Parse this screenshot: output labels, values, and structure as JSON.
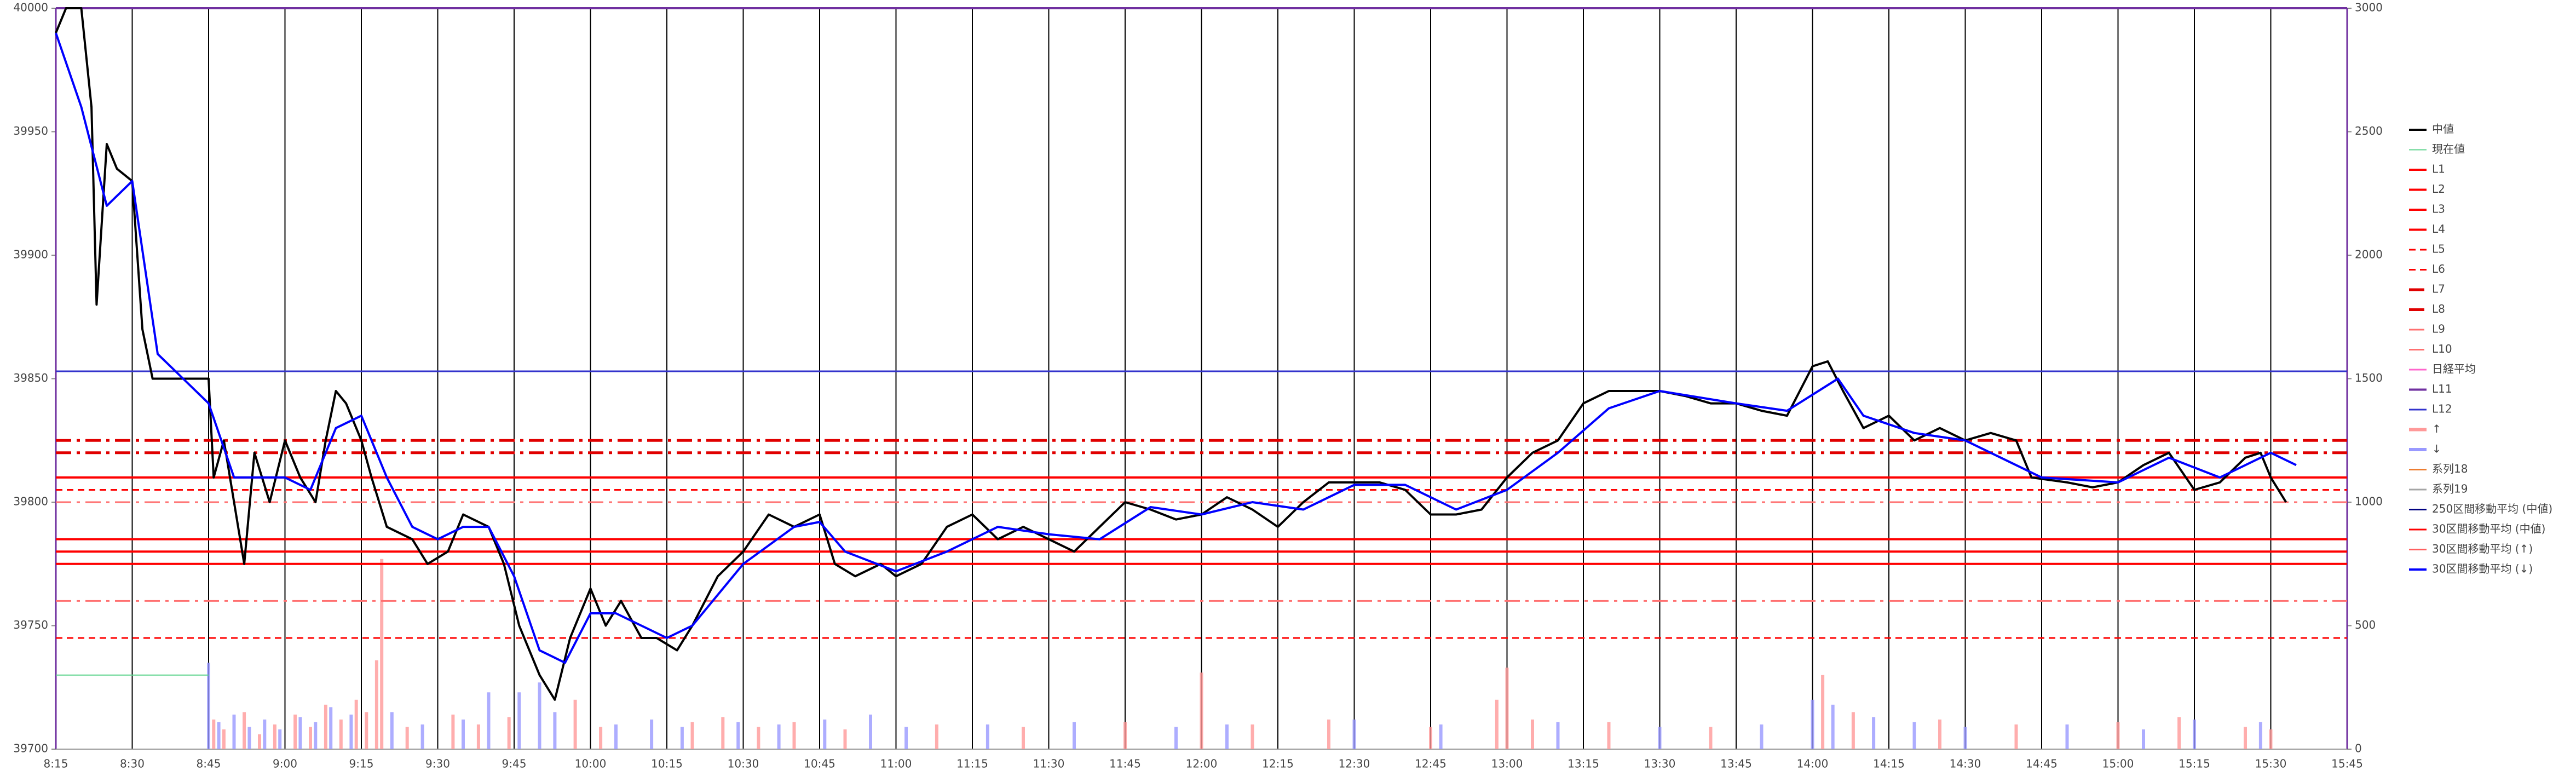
{
  "chart_data": {
    "type": "line",
    "xlim": [
      "8:15",
      "15:45"
    ],
    "xticks": [
      "8:15",
      "8:30",
      "8:45",
      "9:00",
      "9:15",
      "9:30",
      "9:45",
      "10:00",
      "10:15",
      "10:30",
      "10:45",
      "11:00",
      "11:15",
      "11:30",
      "11:45",
      "12:00",
      "12:15",
      "12:30",
      "12:45",
      "13:00",
      "13:15",
      "13:30",
      "13:45",
      "14:00",
      "14:15",
      "14:30",
      "14:45",
      "15:00",
      "15:15",
      "15:30",
      "15:45"
    ],
    "ylim": [
      39700,
      40000
    ],
    "yticks": [
      39700,
      39750,
      39800,
      39850,
      39900,
      39950,
      40000
    ],
    "y2lim": [
      0,
      3000
    ],
    "y2ticks": [
      0,
      500,
      1000,
      1500,
      2000,
      2500,
      3000
    ],
    "series": [
      {
        "name": "中値",
        "color": "#000000",
        "width": 4,
        "x": [
          "8:15",
          "8:17",
          "8:20",
          "8:22",
          "8:23",
          "8:25",
          "8:27",
          "8:30",
          "8:32",
          "8:34",
          "8:45",
          "8:46",
          "8:48",
          "8:50",
          "8:52",
          "8:54",
          "8:57",
          "9:00",
          "9:03",
          "9:06",
          "9:08",
          "9:10",
          "9:12",
          "9:15",
          "9:17",
          "9:20",
          "9:25",
          "9:28",
          "9:32",
          "9:35",
          "9:40",
          "9:43",
          "9:46",
          "9:50",
          "9:53",
          "9:56",
          "10:00",
          "10:03",
          "10:06",
          "10:10",
          "10:13",
          "10:17",
          "10:20",
          "10:25",
          "10:30",
          "10:35",
          "10:40",
          "10:45",
          "10:48",
          "10:52",
          "10:57",
          "11:00",
          "11:05",
          "11:10",
          "11:15",
          "11:20",
          "11:25",
          "11:30",
          "11:35",
          "11:40",
          "11:45",
          "11:50",
          "11:55",
          "12:00",
          "12:05",
          "12:10",
          "12:15",
          "12:20",
          "12:25",
          "12:30",
          "12:35",
          "12:40",
          "12:45",
          "12:50",
          "12:55",
          "13:00",
          "13:05",
          "13:10",
          "13:15",
          "13:20",
          "13:30",
          "13:35",
          "13:40",
          "13:45",
          "13:50",
          "13:55",
          "14:00",
          "14:03",
          "14:06",
          "14:10",
          "14:15",
          "14:20",
          "14:25",
          "14:30",
          "14:35",
          "14:40",
          "14:43",
          "14:50",
          "14:55",
          "15:00",
          "15:05",
          "15:10",
          "15:15",
          "15:20",
          "15:25",
          "15:28",
          "15:30",
          "15:33"
        ],
        "values": [
          39990,
          40000,
          40000,
          39960,
          39880,
          39945,
          39935,
          39930,
          39870,
          39850,
          39850,
          39810,
          39825,
          39800,
          39775,
          39820,
          39800,
          39825,
          39810,
          39800,
          39825,
          39845,
          39840,
          39825,
          39810,
          39790,
          39785,
          39775,
          39780,
          39795,
          39790,
          39775,
          39750,
          39730,
          39720,
          39745,
          39765,
          39750,
          39760,
          39745,
          39745,
          39740,
          39750,
          39770,
          39780,
          39795,
          39790,
          39795,
          39775,
          39770,
          39775,
          39770,
          39775,
          39790,
          39795,
          39785,
          39790,
          39785,
          39780,
          39790,
          39800,
          39797,
          39793,
          39795,
          39802,
          39797,
          39790,
          39800,
          39808,
          39808,
          39808,
          39805,
          39795,
          39795,
          39797,
          39810,
          39820,
          39825,
          39840,
          39845,
          39845,
          39843,
          39840,
          39840,
          39837,
          39835,
          39855,
          39857,
          39845,
          39830,
          39835,
          39825,
          39830,
          39825,
          39828,
          39825,
          39810,
          39808,
          39806,
          39808,
          39815,
          39820,
          39805,
          39808,
          39818,
          39820,
          39810,
          39800
        ]
      },
      {
        "name": "現在値",
        "color": "#5fd38d",
        "width": 2,
        "x": [
          "8:15",
          "8:45"
        ],
        "values": [
          39730,
          39730
        ]
      },
      {
        "name": "L1",
        "color": "#ff0000",
        "style": "solid",
        "width": 4,
        "level": 39810
      },
      {
        "name": "L2",
        "color": "#ff0000",
        "style": "solid",
        "width": 4,
        "level": 39785
      },
      {
        "name": "L3",
        "color": "#ff0000",
        "style": "solid",
        "width": 4,
        "level": 39780
      },
      {
        "name": "L4",
        "color": "#ff0000",
        "style": "solid",
        "width": 4,
        "level": 39775
      },
      {
        "name": "L5",
        "color": "#ff0000",
        "style": "dashed",
        "width": 3,
        "level": 39805
      },
      {
        "name": "L6",
        "color": "#ff0000",
        "style": "dashed",
        "width": 3,
        "level": 39745
      },
      {
        "name": "L7",
        "color": "#e00000",
        "style": "dashdot",
        "width": 5,
        "level": 39825
      },
      {
        "name": "L8",
        "color": "#e00000",
        "style": "dashdot",
        "width": 5,
        "level": 39820
      },
      {
        "name": "L9",
        "color": "#ff7070",
        "style": "dashdot",
        "width": 3,
        "level": 39800
      },
      {
        "name": "L10",
        "color": "#ff7070",
        "style": "dashdot",
        "width": 3,
        "level": 39760
      },
      {
        "name": "日経平均",
        "color": "#ff66cc",
        "style": "solid",
        "width": 3
      },
      {
        "name": "L11",
        "color": "#7030a0",
        "style": "solid",
        "width": 4,
        "level": 40000
      },
      {
        "name": "L12",
        "color": "#3333cc",
        "style": "solid",
        "width": 3,
        "level": 39853
      },
      {
        "name": "↑",
        "color": "#ff9999",
        "axis": "y2",
        "x": [
          "8:46",
          "8:48",
          "8:52",
          "8:55",
          "8:58",
          "9:02",
          "9:05",
          "9:08",
          "9:11",
          "9:14",
          "9:16",
          "9:18",
          "9:19",
          "9:24",
          "9:33",
          "9:38",
          "9:44",
          "9:57",
          "10:02",
          "10:20",
          "10:26",
          "10:33",
          "10:40",
          "10:50",
          "11:08",
          "11:25",
          "11:45",
          "12:00",
          "12:10",
          "12:25",
          "12:45",
          "12:58",
          "13:00",
          "13:05",
          "13:20",
          "13:40",
          "14:02",
          "14:08",
          "14:25",
          "14:40",
          "15:00",
          "15:12",
          "15:25",
          "15:30"
        ],
        "values": [
          120,
          80,
          150,
          60,
          100,
          140,
          90,
          180,
          120,
          200,
          150,
          360,
          770,
          90,
          140,
          100,
          130,
          200,
          90,
          110,
          130,
          90,
          110,
          80,
          100,
          90,
          110,
          310,
          100,
          120,
          90,
          200,
          330,
          120,
          110,
          90,
          300,
          150,
          120,
          100,
          110,
          130,
          90,
          80
        ]
      },
      {
        "name": "↓",
        "color": "#9999ff",
        "axis": "y2",
        "x": [
          "8:45",
          "8:47",
          "8:50",
          "8:53",
          "8:56",
          "8:59",
          "9:03",
          "9:06",
          "9:09",
          "9:13",
          "9:21",
          "9:27",
          "9:35",
          "9:40",
          "9:46",
          "9:50",
          "9:53",
          "10:05",
          "10:12",
          "10:18",
          "10:29",
          "10:37",
          "10:46",
          "10:55",
          "11:02",
          "11:18",
          "11:35",
          "11:55",
          "12:05",
          "12:30",
          "12:47",
          "13:10",
          "13:30",
          "13:50",
          "14:00",
          "14:04",
          "14:12",
          "14:20",
          "14:30",
          "14:50",
          "15:05",
          "15:15",
          "15:28"
        ],
        "values": [
          350,
          110,
          140,
          90,
          120,
          80,
          130,
          110,
          170,
          140,
          150,
          100,
          120,
          230,
          230,
          270,
          150,
          100,
          120,
          90,
          110,
          100,
          120,
          140,
          90,
          100,
          110,
          90,
          100,
          120,
          100,
          110,
          90,
          100,
          200,
          180,
          130,
          110,
          90,
          100,
          80,
          120,
          110
        ]
      },
      {
        "name": "系列18",
        "color": "#ed7d31",
        "style": "solid",
        "width": 3
      },
      {
        "name": "系列19",
        "color": "#a5a5a5",
        "style": "solid",
        "width": 3
      },
      {
        "name": "250区間移動平均 (中値)",
        "color": "#000080",
        "style": "solid",
        "width": 3
      },
      {
        "name": "30区間移動平均 (中値)",
        "color": "#ff0000",
        "style": "solid",
        "width": 3
      },
      {
        "name": "30区間移動平均 (↑)",
        "color": "#ff6060",
        "style": "solid",
        "width": 3
      },
      {
        "name": "30区間移動平均 (↓)",
        "color": "#0000ff",
        "style": "solid",
        "width": 4,
        "x": [
          "8:15",
          "8:20",
          "8:25",
          "8:30",
          "8:35",
          "8:40",
          "8:45",
          "8:50",
          "9:00",
          "9:05",
          "9:10",
          "9:15",
          "9:20",
          "9:25",
          "9:30",
          "9:35",
          "9:40",
          "9:45",
          "9:50",
          "9:55",
          "10:00",
          "10:05",
          "10:10",
          "10:15",
          "10:20",
          "10:30",
          "10:40",
          "10:45",
          "10:50",
          "11:00",
          "11:10",
          "11:20",
          "11:30",
          "11:40",
          "11:50",
          "12:00",
          "12:10",
          "12:20",
          "12:30",
          "12:40",
          "12:50",
          "13:00",
          "13:10",
          "13:20",
          "13:30",
          "13:45",
          "13:55",
          "14:05",
          "14:10",
          "14:20",
          "14:30",
          "14:45",
          "15:00",
          "15:10",
          "15:20",
          "15:30",
          "15:35"
        ],
        "values": [
          39990,
          39960,
          39920,
          39930,
          39860,
          39850,
          39840,
          39810,
          39810,
          39805,
          39830,
          39835,
          39810,
          39790,
          39785,
          39790,
          39790,
          39770,
          39740,
          39735,
          39755,
          39755,
          39750,
          39745,
          39750,
          39775,
          39790,
          39792,
          39780,
          39772,
          39780,
          39790,
          39787,
          39785,
          39798,
          39795,
          39800,
          39797,
          39807,
          39807,
          39797,
          39805,
          39820,
          39838,
          39845,
          39840,
          39837,
          39850,
          39835,
          39828,
          39825,
          39810,
          39808,
          39818,
          39810,
          39820,
          39815
        ]
      }
    ]
  }
}
